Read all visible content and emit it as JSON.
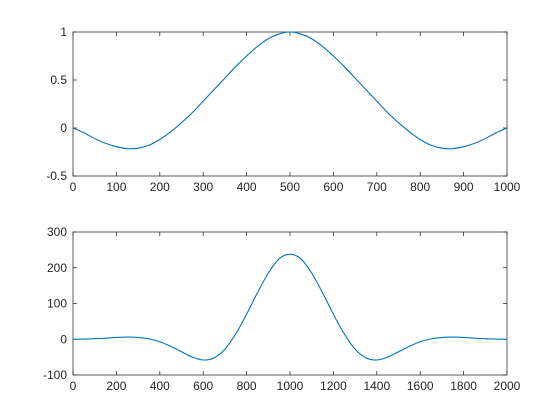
{
  "chart_data": [
    {
      "type": "line",
      "title": "",
      "xlabel": "",
      "ylabel": "",
      "xlim": [
        0,
        1000
      ],
      "ylim": [
        -0.5,
        1
      ],
      "xticks": [
        0,
        100,
        200,
        300,
        400,
        500,
        600,
        700,
        800,
        900,
        1000
      ],
      "yticks": [
        -0.5,
        0,
        0.5,
        1
      ],
      "xtick_labels": [
        "0",
        "100",
        "200",
        "300",
        "400",
        "500",
        "600",
        "700",
        "800",
        "900",
        "1000"
      ],
      "ytick_labels": [
        "-0.5",
        "0",
        "0.5",
        "1"
      ],
      "grid": false,
      "line_color": "#0072BD",
      "series": [
        {
          "x": [
            0,
            25,
            50,
            75,
            100,
            125,
            150,
            175,
            200,
            225,
            250,
            275,
            300,
            325,
            350,
            375,
            400,
            425,
            450,
            475,
            500,
            525,
            550,
            575,
            600,
            625,
            650,
            675,
            700,
            725,
            750,
            775,
            800,
            825,
            850,
            875,
            900,
            925,
            950,
            975,
            1000
          ],
          "y": [
            0,
            -0.05,
            -0.11,
            -0.16,
            -0.195,
            -0.215,
            -0.21,
            -0.18,
            -0.12,
            -0.04,
            0.055,
            0.16,
            0.28,
            0.4,
            0.52,
            0.64,
            0.75,
            0.85,
            0.93,
            0.98,
            1.0,
            0.98,
            0.93,
            0.85,
            0.75,
            0.64,
            0.52,
            0.4,
            0.28,
            0.16,
            0.055,
            -0.04,
            -0.12,
            -0.18,
            -0.21,
            -0.215,
            -0.195,
            -0.16,
            -0.11,
            -0.05,
            0
          ]
        }
      ]
    },
    {
      "type": "line",
      "title": "",
      "xlabel": "",
      "ylabel": "",
      "xlim": [
        0,
        2000
      ],
      "ylim": [
        -100,
        300
      ],
      "xticks": [
        0,
        200,
        400,
        600,
        800,
        1000,
        1200,
        1400,
        1600,
        1800,
        2000
      ],
      "yticks": [
        -100,
        0,
        100,
        200,
        300
      ],
      "xtick_labels": [
        "0",
        "200",
        "400",
        "600",
        "800",
        "1000",
        "1200",
        "1400",
        "1600",
        "1800",
        "2000"
      ],
      "ytick_labels": [
        "-100",
        "0",
        "100",
        "200",
        "300"
      ],
      "grid": false,
      "line_color": "#0072BD",
      "series": [
        {
          "x": [
            0,
            50,
            100,
            150,
            200,
            250,
            300,
            350,
            400,
            450,
            500,
            550,
            600,
            650,
            700,
            750,
            800,
            850,
            900,
            950,
            1000,
            1050,
            1100,
            1150,
            1200,
            1250,
            1300,
            1350,
            1400,
            1450,
            1500,
            1550,
            1600,
            1650,
            1700,
            1750,
            1800,
            1850,
            1900,
            1950,
            2000
          ],
          "y": [
            0,
            0.5,
            1.5,
            3,
            5,
            6,
            5,
            1,
            -7,
            -20,
            -35,
            -50,
            -58,
            -52,
            -28,
            15,
            70,
            130,
            185,
            225,
            238,
            225,
            185,
            130,
            70,
            15,
            -28,
            -52,
            -58,
            -50,
            -35,
            -20,
            -7,
            1,
            5,
            6,
            5,
            3,
            1.5,
            0.5,
            0
          ]
        }
      ]
    }
  ]
}
